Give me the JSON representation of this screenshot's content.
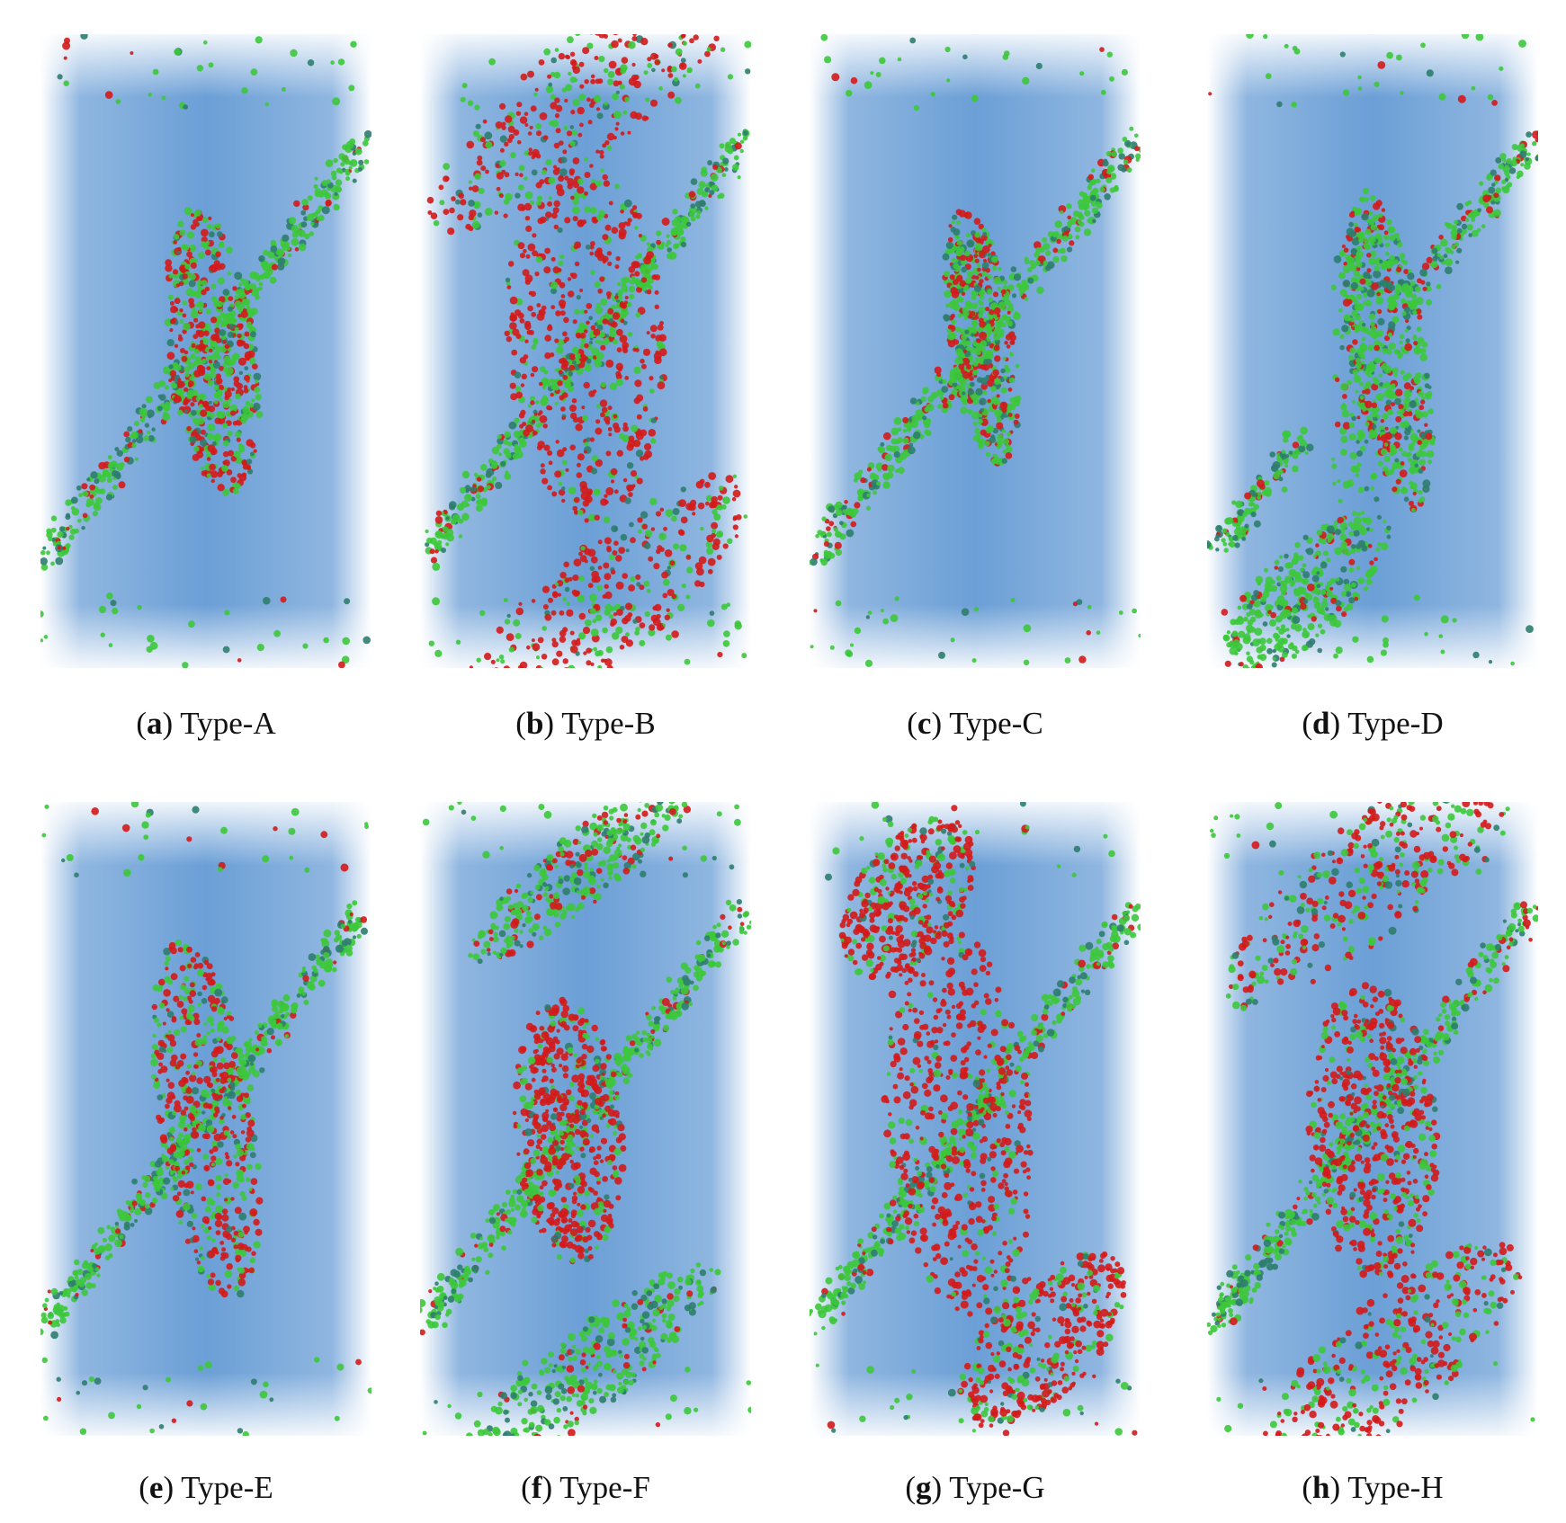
{
  "figure": {
    "panels": [
      {
        "letter": "a",
        "caption": "Type-A"
      },
      {
        "letter": "b",
        "caption": "Type-B"
      },
      {
        "letter": "c",
        "caption": "Type-C"
      },
      {
        "letter": "d",
        "caption": "Type-D"
      },
      {
        "letter": "e",
        "caption": "Type-E"
      },
      {
        "letter": "f",
        "caption": "Type-F"
      },
      {
        "letter": "g",
        "caption": "Type-G"
      },
      {
        "letter": "h",
        "caption": "Type-H"
      }
    ]
  }
}
